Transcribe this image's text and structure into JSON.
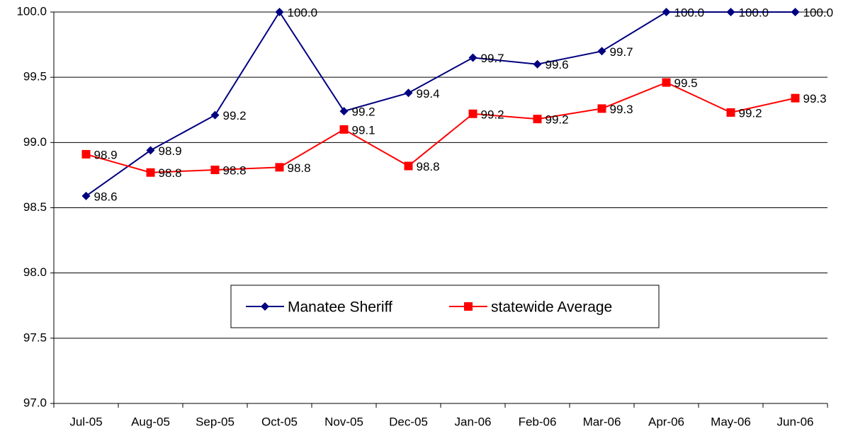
{
  "chart_data": {
    "type": "line",
    "categories": [
      "Jul-05",
      "Aug-05",
      "Sep-05",
      "Oct-05",
      "Nov-05",
      "Dec-05",
      "Jan-06",
      "Feb-06",
      "Mar-06",
      "Apr-06",
      "May-06",
      "Jun-06"
    ],
    "series": [
      {
        "name": "Manatee Sheriff",
        "color": "#000080",
        "marker": "diamond",
        "values": [
          98.59,
          98.94,
          99.21,
          100.0,
          99.24,
          99.38,
          99.65,
          99.6,
          99.7,
          100.0,
          100.0,
          100.0
        ],
        "value_labels": [
          "98.6",
          "98.9",
          "99.2",
          "100.0",
          "99.2",
          "99.4",
          "99.7",
          "99.6",
          "99.7",
          "100.0",
          "100.0",
          "100.0"
        ]
      },
      {
        "name": "statewide Average",
        "color": "#ff0000",
        "marker": "square",
        "values": [
          98.91,
          98.77,
          98.79,
          98.81,
          99.1,
          98.82,
          99.22,
          99.18,
          99.26,
          99.46,
          99.23,
          99.34
        ],
        "value_labels": [
          "98.9",
          "98.8",
          "98.8",
          "98.8",
          "99.1",
          "98.8",
          "99.2",
          "99.2",
          "99.3",
          "99.5",
          "99.2",
          "99.3"
        ]
      }
    ],
    "ylim": [
      97.0,
      100.0
    ],
    "yticks": [
      {
        "value": 97,
        "label": "97.0"
      },
      97.5,
      {
        "value": 98,
        "label": "98.0"
      },
      98.5,
      {
        "value": 99,
        "label": "99.0"
      },
      99.5,
      {
        "value": 100,
        "label": "100.0"
      }
    ],
    "grid": true,
    "legend": "center"
  }
}
